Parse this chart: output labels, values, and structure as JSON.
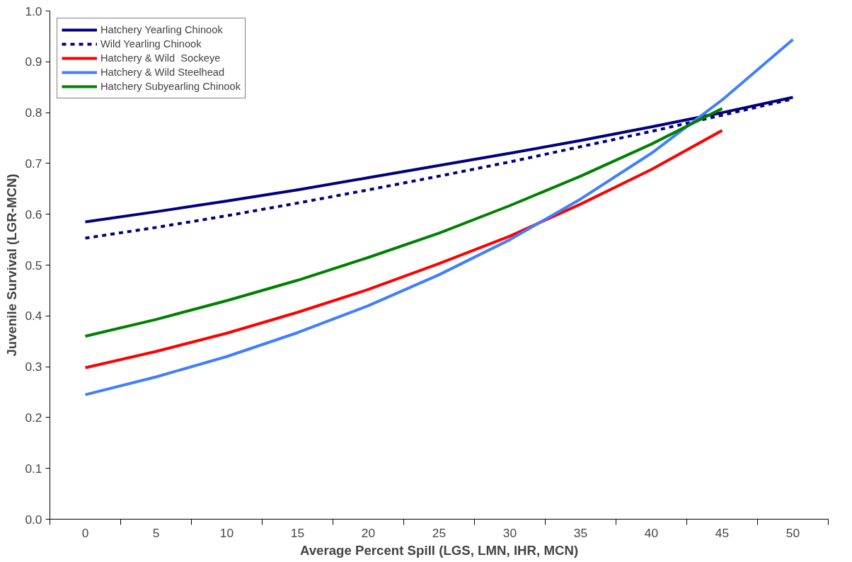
{
  "chart_data": {
    "type": "line",
    "xlabel": "Average Percent Spill (LGS, LMN, IHR, MCN)",
    "ylabel": "Juvenile Survival (LGR-MCN)",
    "categories": [
      "0",
      "5",
      "10",
      "15",
      "20",
      "25",
      "30",
      "35",
      "40",
      "45",
      "50"
    ],
    "ylim": [
      0,
      1
    ],
    "yticks": [
      {
        "value": 0,
        "label": "0.0"
      },
      {
        "value": 0.1,
        "label": "0.1"
      },
      {
        "value": 0.2,
        "label": "0.2"
      },
      {
        "value": 0.3,
        "label": "0.3"
      },
      {
        "value": 0.4,
        "label": "0.4"
      },
      {
        "value": 0.5,
        "label": "0.5"
      },
      {
        "value": 0.6,
        "label": "0.6"
      },
      {
        "value": 0.7,
        "label": "0.7"
      },
      {
        "value": 0.8,
        "label": "0.8"
      },
      {
        "value": 0.9,
        "label": "0.9"
      },
      {
        "value": 1,
        "label": "1.0"
      }
    ],
    "grid": false,
    "legend": "top left",
    "marker": "none",
    "series": [
      {
        "name": "Hatchery Yearling Chinook",
        "color": "#000080",
        "line_style": "solid",
        "values": [
          0.585,
          0.605,
          0.626,
          0.648,
          0.672,
          0.696,
          0.72,
          0.745,
          0.772,
          0.8,
          0.83
        ]
      },
      {
        "name": "Wild Yearling Chinook",
        "color": "#000080",
        "line_style": "dashed",
        "values": [
          0.553,
          0.574,
          0.597,
          0.622,
          0.648,
          0.675,
          0.703,
          0.733,
          0.763,
          0.795,
          0.827
        ]
      },
      {
        "name": "Hatchery & Wild  Sockeye",
        "color": "#ff0000",
        "line_style": "solid",
        "values": [
          0.298,
          0.33,
          0.366,
          0.407,
          0.452,
          0.503,
          0.557,
          0.62,
          0.688,
          0.765,
          null
        ]
      },
      {
        "name": "Hatchery & Wild Steelhead",
        "color": "#3f7fff",
        "line_style": "solid",
        "values": [
          0.245,
          0.28,
          0.32,
          0.367,
          0.42,
          0.481,
          0.55,
          0.63,
          0.72,
          0.825,
          0.944
        ]
      },
      {
        "name": "Hatchery Subyearling Chinook",
        "color": "#008000",
        "line_style": "solid",
        "values": [
          0.36,
          0.393,
          0.43,
          0.47,
          0.515,
          0.563,
          0.617,
          0.675,
          0.738,
          0.808,
          null
        ]
      }
    ]
  }
}
